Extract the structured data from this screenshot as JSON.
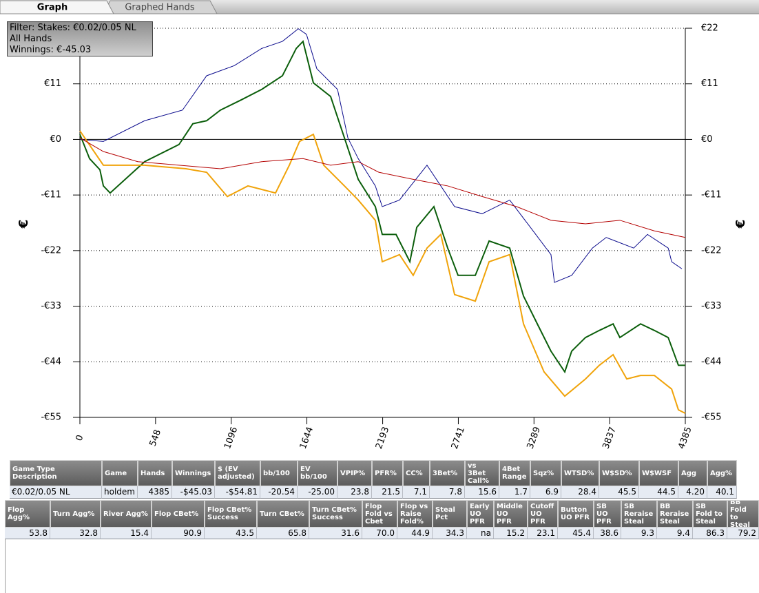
{
  "tabs": [
    "Graph",
    "Graphed Hands"
  ],
  "filter": [
    "Filter: Stakes: €0.02/0.05 NL",
    "All Hands",
    "Winnings: €-45.03"
  ],
  "chart_data": {
    "type": "line",
    "y_label": "€",
    "y2_label": "€",
    "xlim": [
      0,
      4385
    ],
    "xticks": [
      0,
      548,
      1096,
      1644,
      2193,
      2741,
      3289,
      3837,
      4385
    ],
    "ylim": [
      -55,
      22
    ],
    "yticks": [
      {
        "value": 22,
        "label": "€22"
      },
      {
        "value": 11,
        "label": "€11"
      },
      {
        "value": 0,
        "label": "€0"
      },
      {
        "value": -11,
        "label": "-€11"
      },
      {
        "value": -22,
        "label": "-€22"
      },
      {
        "value": -33,
        "label": "-€33"
      },
      {
        "value": -44,
        "label": "-€44"
      },
      {
        "value": -55,
        "label": "-€55"
      }
    ],
    "y2lim": [
      -55,
      22
    ],
    "y2ticks": [
      {
        "value": 22,
        "label": "€22"
      },
      {
        "value": 11,
        "label": "€11"
      },
      {
        "value": 0,
        "label": "€0"
      },
      {
        "value": -11,
        "label": "-€11"
      },
      {
        "value": -22,
        "label": "-€22"
      },
      {
        "value": -33,
        "label": "-€33"
      },
      {
        "value": -44,
        "label": "-€44"
      },
      {
        "value": -55,
        "label": "-€55"
      }
    ],
    "grid": true,
    "series": [
      {
        "color": "#0a0a8c",
        "x": [
          0,
          170,
          469,
          743,
          918,
          1118,
          1317,
          1467,
          1582,
          1641,
          1716,
          1866,
          1941,
          2016,
          2140,
          2190,
          2315,
          2514,
          2614,
          2714,
          2914,
          3113,
          3263,
          3412,
          3437,
          3562,
          3712,
          3812,
          4011,
          4111,
          4261,
          4286,
          4360
        ],
        "values": [
          0,
          -0.4,
          3.7,
          5.8,
          12.6,
          14.6,
          18,
          19.4,
          21.9,
          20.8,
          14,
          9.9,
          0.3,
          -3.8,
          -9.2,
          -13.3,
          -12,
          -5.1,
          -9.2,
          -13.3,
          -14.7,
          -12,
          -17.4,
          -22.8,
          -28.3,
          -26.9,
          -21.5,
          -19.4,
          -21.5,
          -18.8,
          -21.5,
          -24.2,
          -25.6
        ]
      },
      {
        "color": "#0b5e0b",
        "x": [
          0,
          70,
          145,
          170,
          219,
          469,
          718,
          818,
          918,
          1018,
          1167,
          1317,
          1467,
          1567,
          1616,
          1691,
          1816,
          1916,
          2016,
          2140,
          2190,
          2290,
          2390,
          2440,
          2564,
          2664,
          2739,
          2864,
          2964,
          3113,
          3213,
          3313,
          3412,
          3512,
          3562,
          3662,
          3762,
          3862,
          3911,
          4061,
          4161,
          4261,
          4335,
          4385
        ],
        "values": [
          1,
          -3.8,
          -6,
          -9.2,
          -10.6,
          -4.4,
          -1,
          3.1,
          3.7,
          5.8,
          7.8,
          9.9,
          12.6,
          18,
          19.4,
          11.2,
          8.5,
          0.3,
          -7.9,
          -13.3,
          -18.8,
          -18.8,
          -24.2,
          -17.4,
          -13.3,
          -21.5,
          -26.9,
          -26.9,
          -20.1,
          -21.5,
          -31,
          -36.5,
          -41.9,
          -46,
          -41.9,
          -39.2,
          -37.8,
          -36.5,
          -39.2,
          -36.5,
          -37.8,
          -39.2,
          -44.7,
          -44.7
        ]
      },
      {
        "color": "#f0a30a",
        "x": [
          0,
          170,
          469,
          768,
          918,
          1068,
          1217,
          1417,
          1517,
          1591,
          1691,
          1766,
          1916,
          2016,
          2140,
          2190,
          2315,
          2414,
          2514,
          2614,
          2714,
          2864,
          2964,
          3113,
          3213,
          3362,
          3512,
          3662,
          3762,
          3862,
          3961,
          4061,
          4161,
          4286,
          4335,
          4385
        ],
        "values": [
          1.7,
          -5.1,
          -5.1,
          -5.8,
          -6.5,
          -11.3,
          -9.2,
          -10.6,
          -5.1,
          -0.4,
          1,
          -5.1,
          -9.2,
          -12,
          -16,
          -24.2,
          -22.8,
          -26.9,
          -21.5,
          -18.8,
          -30.7,
          -32,
          -24.2,
          -22.8,
          -36.5,
          -46,
          -50.8,
          -47.4,
          -44.7,
          -42.6,
          -47.4,
          -46.7,
          -46.7,
          -49.4,
          -53.5,
          -54.2
        ]
      },
      {
        "color": "#b40000",
        "x": [
          0,
          170,
          419,
          718,
          1018,
          1317,
          1616,
          1816,
          2016,
          2165,
          2414,
          2664,
          2914,
          3163,
          3412,
          3662,
          3911,
          4161,
          4385
        ],
        "values": [
          0.3,
          -2.4,
          -4.4,
          -5.1,
          -5.8,
          -4.4,
          -3.8,
          -5.1,
          -4.4,
          -6.5,
          -7.9,
          -9.2,
          -11.3,
          -13.3,
          -16,
          -16.7,
          -16,
          -18.1,
          -19.4
        ]
      }
    ]
  },
  "table1": {
    "headers": [
      "Game Type Description",
      "Game",
      "Hands",
      "Winnings",
      "$ (EV adjusted)",
      "bb/100",
      "EV bb/100",
      "VPIP%",
      "PFR%",
      "CC%",
      "3Bet%",
      "vs 3Bet Call%",
      "4Bet Range",
      "Sqz%",
      "WTSD%",
      "W$SD%",
      "W$WSF",
      "Agg",
      "Agg%"
    ],
    "rows": [
      [
        "€0.02/0.05 NL",
        "holdem",
        "4385",
        "-$45.03",
        "-$54.81",
        "-20.54",
        "-25.00",
        "23.8",
        "21.5",
        "7.1",
        "7.8",
        "15.6",
        "1.7",
        "6.9",
        "28.4",
        "45.5",
        "44.5",
        "4.20",
        "40.1"
      ]
    ]
  },
  "table2": {
    "headers": [
      "Flop Agg%",
      "Turn Agg%",
      "River Agg%",
      "Flop CBet%",
      "Flop CBet% Success",
      "Turn CBet%",
      "Turn CBet% Success",
      "Flop Fold vs Cbet",
      "Flop vs Raise Fold%",
      "Steal Pct",
      "Early UO PFR",
      "Middle UO PFR",
      "Cutoff UO PFR",
      "Button UO PFR",
      "SB UO PFR",
      "SB Reraise Steal",
      "BB Reraise Steal",
      "SB Fold to Steal",
      "BB Fold to Steal"
    ],
    "rows": [
      [
        "53.8",
        "32.8",
        "15.4",
        "90.9",
        "43.5",
        "65.8",
        "31.6",
        "70.0",
        "44.9",
        "34.3",
        "na",
        "15.2",
        "23.1",
        "45.4",
        "38.6",
        "9.3",
        "9.4",
        "86.3",
        "79.2"
      ]
    ]
  }
}
